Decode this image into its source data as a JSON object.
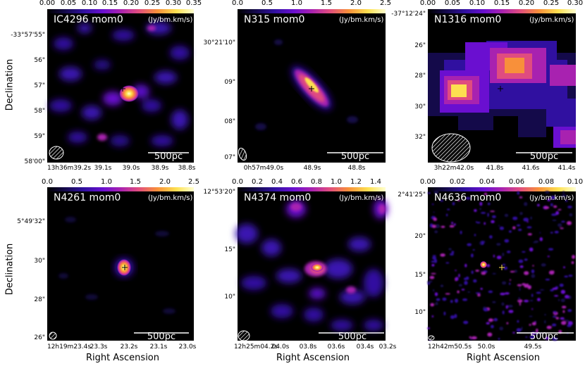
{
  "figure": {
    "y_axis_label": "Declination",
    "x_axis_label": "Right Ascension"
  },
  "colormap": [
    "#000000",
    "#140a4a",
    "#3010a0",
    "#6a0fd0",
    "#a822b0",
    "#e04c80",
    "#f8903a",
    "#fde050",
    "#ffffd0"
  ],
  "panels": [
    {
      "id": "ic4296",
      "title": "IC4296 mom0",
      "unit": "(Jy/bm.km/s)",
      "scale_bar": "500pc",
      "colorbar_ticks": [
        "0.00",
        "0.05",
        "0.10",
        "0.15",
        "0.20",
        "0.25",
        "0.30",
        "0.35"
      ],
      "colorbar_range": [
        0,
        0.35
      ],
      "dec_ticks": [
        "-33°57'55\"",
        "56\"",
        "57\"",
        "58\"",
        "59\"",
        "58'00\""
      ],
      "ra_ticks": [
        "13h36m39.2s",
        "39.1s",
        "39.0s",
        "38.9s",
        "38.8s"
      ],
      "beam_shape": "ellipse"
    },
    {
      "id": "n315",
      "title": "N315 mom0",
      "unit": "(Jy/bm.km/s)",
      "scale_bar": "500pc",
      "colorbar_ticks": [
        "0.0",
        "0.5",
        "1.0",
        "1.5",
        "2.0",
        "2.5"
      ],
      "colorbar_range": [
        0,
        2.5
      ],
      "dec_ticks": [
        "30°21'10\"",
        "09\"",
        "08\"",
        "07\""
      ],
      "ra_ticks": [
        "0h57m49.0s",
        "48.9s",
        "48.8s"
      ],
      "beam_shape": "ellipse"
    },
    {
      "id": "n1316",
      "title": "N1316 mom0",
      "unit": "(Jy/bm.km/s)",
      "scale_bar": "500pc",
      "colorbar_ticks": [
        "0.00",
        "0.05",
        "0.10",
        "0.15",
        "0.20",
        "0.25",
        "0.30"
      ],
      "colorbar_range": [
        0,
        0.3
      ],
      "dec_ticks": [
        "-37°12'24\"",
        "26\"",
        "28\"",
        "30\"",
        "32\""
      ],
      "ra_ticks": [
        "3h22m42.0s",
        "41.8s",
        "41.6s",
        "41.4s"
      ],
      "beam_shape": "ellipse"
    },
    {
      "id": "n4261",
      "title": "N4261 mom0",
      "unit": "(Jy/bm.km/s)",
      "scale_bar": "500pc",
      "colorbar_ticks": [
        "0.0",
        "0.5",
        "1.0",
        "1.5",
        "2.0",
        "2.5"
      ],
      "colorbar_range": [
        0,
        2.5
      ],
      "dec_ticks": [
        "5°49'32\"",
        "30\"",
        "28\"",
        "26\""
      ],
      "ra_ticks": [
        "12h19m23.4s",
        "23.3s",
        "23.2s",
        "23.1s",
        "23.0s"
      ],
      "beam_shape": "ellipse"
    },
    {
      "id": "n4374",
      "title": "N4374 mom0",
      "unit": "(Jy/bm.km/s)",
      "scale_bar": "500pc",
      "colorbar_ticks": [
        "0.0",
        "0.2",
        "0.4",
        "0.6",
        "0.8",
        "1.0",
        "1.2",
        "1.4"
      ],
      "colorbar_range": [
        0,
        1.5
      ],
      "dec_ticks": [
        "12°53'20\"",
        "15\"",
        "10\""
      ],
      "ra_ticks": [
        "12h25m04.2s",
        "04.0s",
        "03.8s",
        "03.6s",
        "03.4s",
        "03.2s"
      ],
      "beam_shape": "ellipse"
    },
    {
      "id": "n4636",
      "title": "N4636 mom0",
      "unit": "(Jy/bm.km/s)",
      "scale_bar": "500pc",
      "colorbar_ticks": [
        "0.00",
        "0.02",
        "0.04",
        "0.06",
        "0.08",
        "0.10"
      ],
      "colorbar_range": [
        0,
        0.1
      ],
      "dec_ticks": [
        "2°41'25\"",
        "20\"",
        "15\"",
        "10\""
      ],
      "ra_ticks": [
        "12h42m50.5s",
        "50.0s",
        "49.5s"
      ],
      "beam_shape": "ellipse"
    }
  ]
}
